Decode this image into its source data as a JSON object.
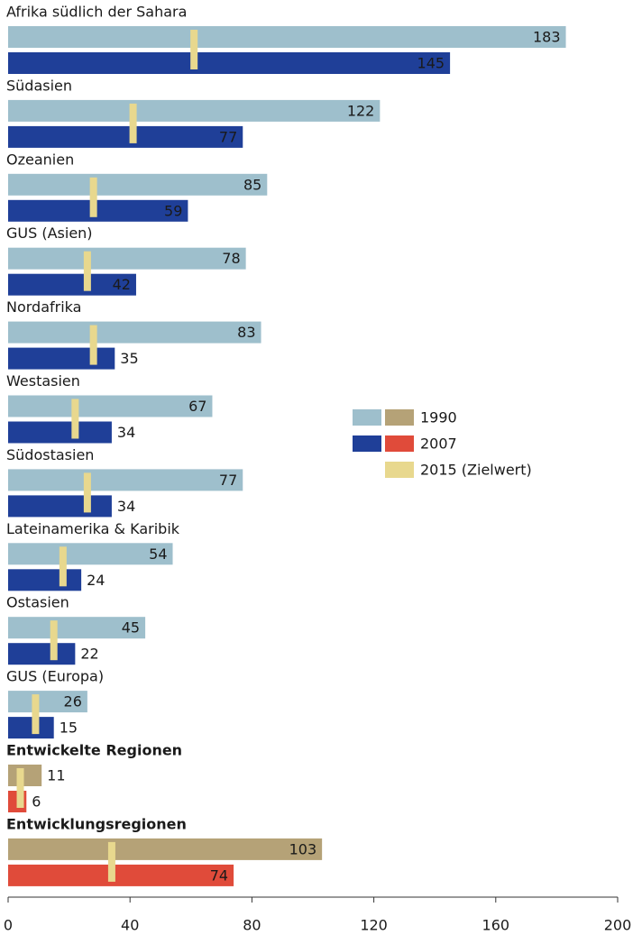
{
  "chart_data": {
    "type": "bar",
    "orientation": "horizontal",
    "categories": [
      "Afrika südlich der Sahara",
      "Südasien",
      "Ozeanien",
      "GUS (Asien)",
      "Nordafrika",
      "Westasien",
      "Südostasien",
      "Lateinamerika & Karibik",
      "Ostasien",
      "GUS (Europa)",
      "Entwickelte Regionen",
      "Entwicklungsregionen"
    ],
    "emphasis": [
      false,
      false,
      false,
      false,
      false,
      false,
      false,
      false,
      false,
      false,
      true,
      true
    ],
    "series": [
      {
        "name": "1990",
        "colors": [
          "#9ebfcc",
          "#9ebfcc",
          "#9ebfcc",
          "#9ebfcc",
          "#9ebfcc",
          "#9ebfcc",
          "#9ebfcc",
          "#9ebfcc",
          "#9ebfcc",
          "#9ebfcc",
          "#b5a277",
          "#b5a277"
        ],
        "values": [
          183,
          122,
          85,
          78,
          83,
          67,
          77,
          54,
          45,
          26,
          11,
          103
        ]
      },
      {
        "name": "2007",
        "colors": [
          "#1f3f98",
          "#1f3f98",
          "#1f3f98",
          "#1f3f98",
          "#1f3f98",
          "#1f3f98",
          "#1f3f98",
          "#1f3f98",
          "#1f3f98",
          "#1f3f98",
          "#e04b3a",
          "#e04b3a"
        ],
        "values": [
          145,
          77,
          59,
          42,
          35,
          34,
          34,
          24,
          22,
          15,
          6,
          74
        ]
      },
      {
        "name": "2015 (Zielwert)",
        "type": "marker",
        "color": "#e8d88e",
        "values": [
          61,
          41,
          28,
          26,
          28,
          22,
          26,
          18,
          15,
          9,
          4,
          34
        ]
      }
    ],
    "xlim": [
      0,
      200
    ],
    "xticks": [
      0,
      40,
      80,
      120,
      160,
      200
    ]
  }
}
